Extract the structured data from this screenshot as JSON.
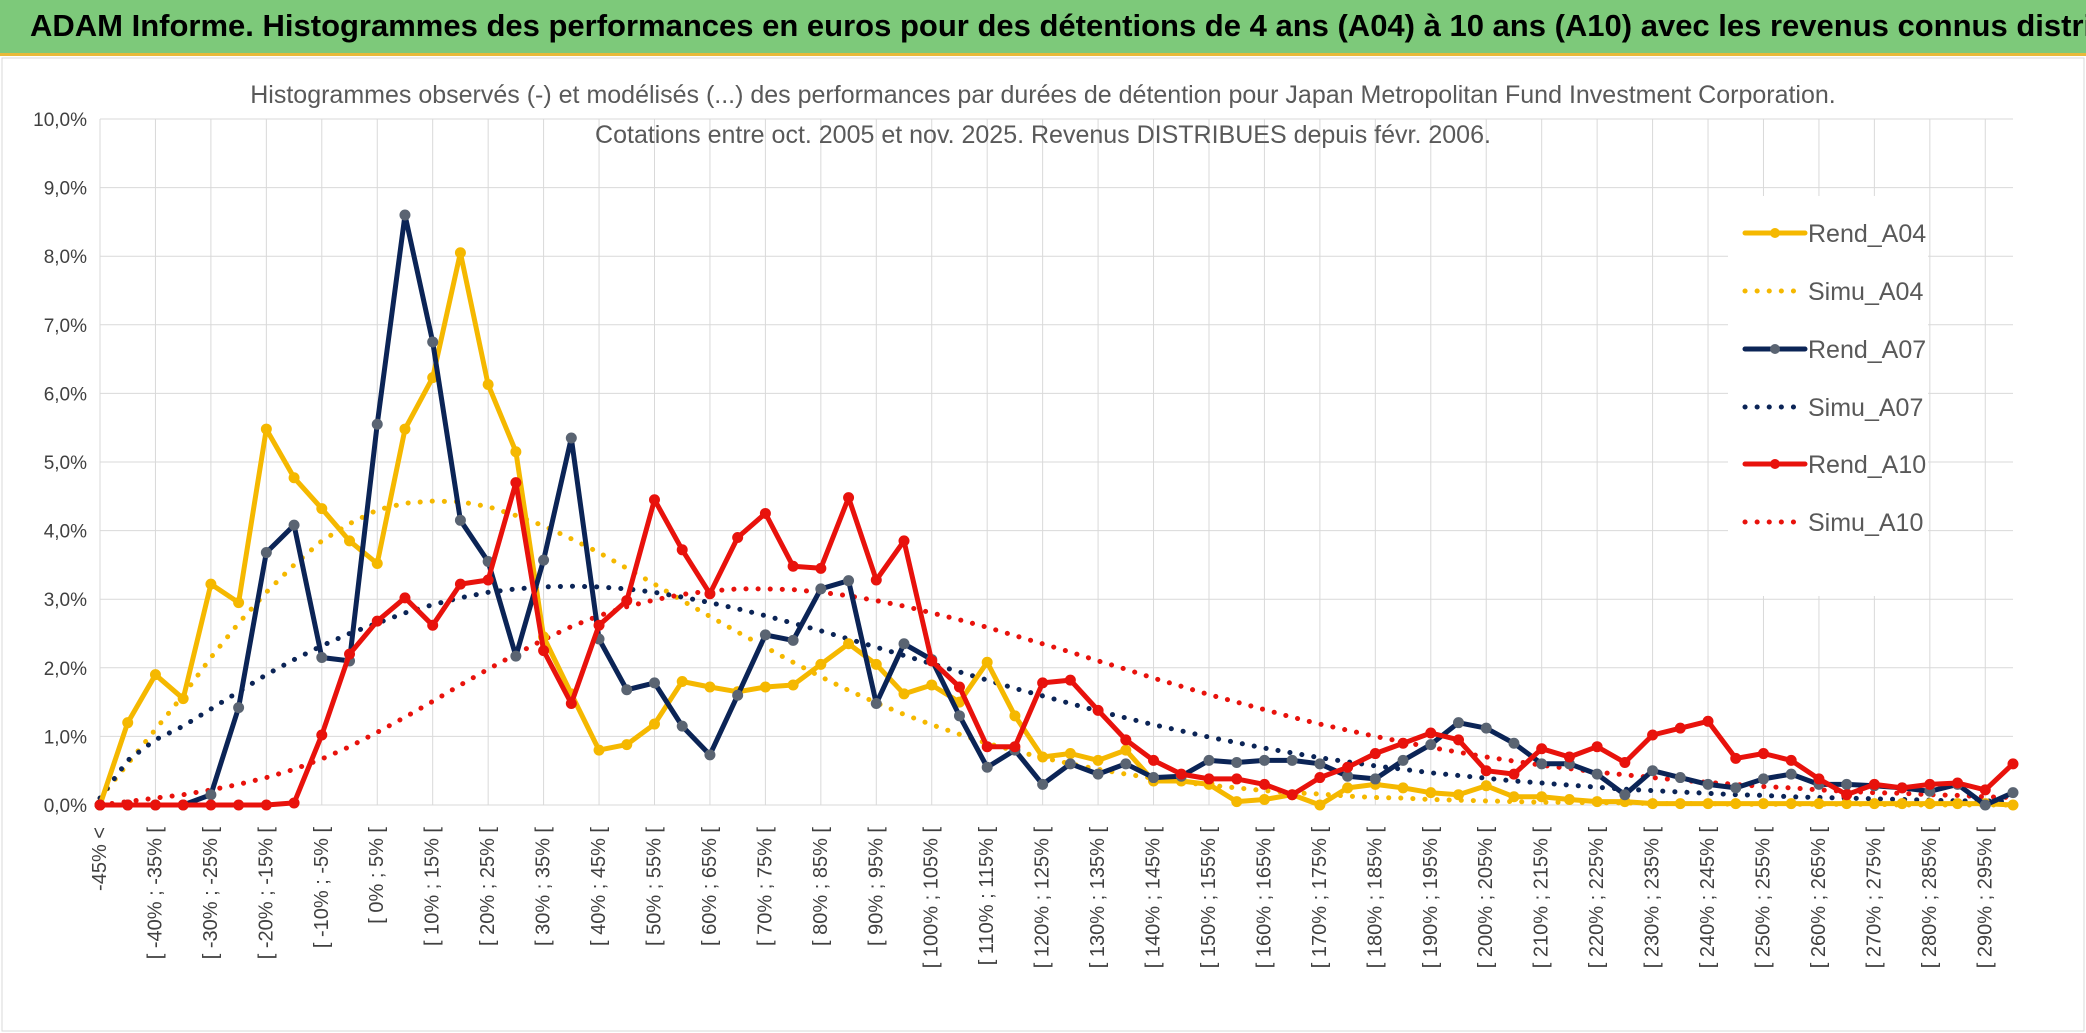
{
  "header": {
    "title": "ADAM Informe. Histogrammes des performances en euros pour des détentions de 4 ans (A04) à 10 ans (A10) avec les revenus connus distribués"
  },
  "chart_data": {
    "type": "line",
    "title": [
      "Histogrammes observés (-) et modélisés (...) des performances par durées de détention pour Japan Metropolitan Fund Investment Corporation.",
      "Cotations entre oct. 2005 et nov. 2025. Revenus DISTRIBUES depuis févr. 2006."
    ],
    "xlabel": "",
    "ylabel": "",
    "ylim": [
      0,
      10
    ],
    "yticks": [
      "0,0%",
      "1,0%",
      "2,0%",
      "3,0%",
      "4,0%",
      "5,0%",
      "6,0%",
      "7,0%",
      "8,0%",
      "9,0%",
      "10,0%"
    ],
    "grid": true,
    "legend_position": "right",
    "categories": [
      "-45% <",
      "[ -45% ; -40% [",
      "[ -40% ; -35% [",
      "[ -35% ; -30% [",
      "[ -30% ; -25% [",
      "[ -25% ; -20% [",
      "[ -20% ; -15% [",
      "[ -15% ; -10% [",
      "[ -10% ; -5% [",
      "[ -5% ; 0% [",
      "[ 0% ; 5% [",
      "[ 5% ; 10% [",
      "[ 10% ; 15% [",
      "[ 15% ; 20% [",
      "[ 20% ; 25% [",
      "[ 25% ; 30% [",
      "[ 30% ; 35% [",
      "[ 35% ; 40% [",
      "[ 40% ; 45% [",
      "[ 45% ; 50% [",
      "[ 50% ; 55% [",
      "[ 55% ; 60% [",
      "[ 60% ; 65% [",
      "[ 65% ; 70% [",
      "[ 70% ; 75% [",
      "[ 75% ; 80% [",
      "[ 80% ; 85% [",
      "[ 85% ; 90% [",
      "[ 90% ; 95% [",
      "[ 95% ; 100% [",
      "[ 100% ; 105% [",
      "[ 105% ; 110% [",
      "[ 110% ; 115% [",
      "[ 115% ; 120% [",
      "[ 120% ; 125% [",
      "[ 125% ; 130% [",
      "[ 130% ; 135% [",
      "[ 135% ; 140% [",
      "[ 140% ; 145% [",
      "[ 145% ; 150% [",
      "[ 150% ; 155% [",
      "[ 155% ; 160% [",
      "[ 160% ; 165% [",
      "[ 165% ; 170% [",
      "[ 170% ; 175% [",
      "[ 175% ; 180% [",
      "[ 180% ; 185% [",
      "[ 185% ; 190% [",
      "[ 190% ; 195% [",
      "[ 195% ; 200% [",
      "[ 200% ; 205% [",
      "[ 205% ; 210% [",
      "[ 210% ; 215% [",
      "[ 215% ; 220% [",
      "[ 220% ; 225% [",
      "[ 225% ; 230% [",
      "[ 230% ; 235% [",
      "[ 235% ; 240% [",
      "[ 240% ; 245% [",
      "[ 245% ; 250% [",
      "[ 250% ; 255% [",
      "[ 255% ; 260% [",
      "[ 260% ; 265% [",
      "[ 265% ; 270% [",
      "[ 270% ; 275% [",
      "[ 275% ; 280% [",
      "[ 280% ; 285% [",
      "[ 285% ; 290% [",
      "[ 290% ; 295% [",
      "[ 295% ; 300% ["
    ],
    "visible_category_indices": [
      0,
      2,
      4,
      6,
      8,
      10,
      12,
      14,
      16,
      18,
      20,
      22,
      24,
      26,
      28,
      30,
      32,
      34,
      36,
      38,
      40,
      42,
      44,
      46,
      48,
      50,
      52,
      54,
      56,
      58,
      60,
      62,
      64,
      66,
      68
    ],
    "series": [
      {
        "name": "Rend_A04",
        "style": "solid",
        "color": "#f5b800",
        "values": [
          0,
          1.2,
          1.9,
          1.55,
          3.22,
          2.95,
          5.48,
          4.77,
          4.32,
          3.85,
          3.52,
          5.48,
          6.23,
          8.05,
          6.13,
          5.15,
          2.45,
          1.62,
          0.8,
          0.88,
          1.18,
          1.8,
          1.72,
          1.65,
          1.72,
          1.75,
          2.05,
          2.35,
          2.05,
          1.62,
          1.75,
          1.5,
          2.08,
          1.3,
          0.7,
          0.75,
          0.65,
          0.8,
          0.35,
          0.35,
          0.3,
          0.05,
          0.08,
          0.15,
          0.0,
          0.25,
          0.3,
          0.25,
          0.18,
          0.15,
          0.28,
          0.12,
          0.12,
          0.08,
          0.05,
          0.05,
          0.02,
          0.02,
          0.02,
          0.02,
          0.02,
          0.02,
          0.02,
          0.02,
          0.02,
          0.02,
          0.02,
          0.02,
          0.02,
          0.0
        ]
      },
      {
        "name": "Simu_A04",
        "style": "dotted",
        "color": "#f5b800",
        "values": [
          0.1,
          0.6,
          1.1,
          1.6,
          2.15,
          2.65,
          3.1,
          3.5,
          3.85,
          4.1,
          4.3,
          4.4,
          4.43,
          4.42,
          4.35,
          4.22,
          4.07,
          3.88,
          3.68,
          3.45,
          3.22,
          2.98,
          2.75,
          2.52,
          2.3,
          2.08,
          1.87,
          1.67,
          1.49,
          1.32,
          1.17,
          1.03,
          0.9,
          0.79,
          0.69,
          0.6,
          0.52,
          0.45,
          0.39,
          0.33,
          0.29,
          0.25,
          0.21,
          0.18,
          0.16,
          0.13,
          0.11,
          0.1,
          0.08,
          0.07,
          0.06,
          0.05,
          0.04,
          0.04,
          0.03,
          0.03,
          0.02,
          0.02,
          0.02,
          0.01,
          0.01,
          0.01,
          0.01,
          0.01,
          0.01,
          0.0,
          0.0,
          0.0,
          0.0,
          0.0
        ]
      },
      {
        "name": "Rend_A07",
        "style": "solid",
        "color": "#0b2456",
        "values": [
          0,
          0,
          0,
          0,
          0.15,
          1.42,
          3.68,
          4.08,
          2.15,
          2.1,
          5.55,
          8.6,
          6.75,
          4.15,
          3.55,
          2.17,
          3.57,
          5.35,
          2.42,
          1.68,
          1.78,
          1.15,
          0.73,
          1.6,
          2.48,
          2.4,
          3.15,
          3.27,
          1.48,
          2.35,
          2.12,
          1.3,
          0.55,
          0.8,
          0.3,
          0.6,
          0.45,
          0.6,
          0.4,
          0.42,
          0.65,
          0.62,
          0.65,
          0.65,
          0.6,
          0.42,
          0.38,
          0.65,
          0.88,
          1.2,
          1.12,
          0.9,
          0.6,
          0.6,
          0.45,
          0.15,
          0.5,
          0.4,
          0.3,
          0.25,
          0.38,
          0.45,
          0.3,
          0.3,
          0.28,
          0.25,
          0.2,
          0.3,
          0.0,
          0.18
        ]
      },
      {
        "name": "Simu_A07",
        "style": "dotted",
        "color": "#0b2456",
        "values": [
          0.1,
          0.65,
          0.95,
          1.15,
          1.4,
          1.65,
          1.9,
          2.12,
          2.32,
          2.5,
          2.65,
          2.8,
          2.92,
          3.02,
          3.1,
          3.15,
          3.18,
          3.19,
          3.18,
          3.15,
          3.1,
          3.03,
          2.95,
          2.86,
          2.76,
          2.65,
          2.54,
          2.42,
          2.3,
          2.18,
          2.06,
          1.94,
          1.82,
          1.7,
          1.59,
          1.48,
          1.37,
          1.27,
          1.17,
          1.08,
          0.99,
          0.91,
          0.83,
          0.76,
          0.69,
          0.63,
          0.57,
          0.52,
          0.47,
          0.43,
          0.39,
          0.35,
          0.32,
          0.29,
          0.26,
          0.23,
          0.21,
          0.19,
          0.17,
          0.15,
          0.14,
          0.12,
          0.11,
          0.1,
          0.09,
          0.08,
          0.07,
          0.06,
          0.06,
          0.05
        ]
      },
      {
        "name": "Rend_A10",
        "style": "solid",
        "color": "#e8120c",
        "values": [
          0,
          0,
          0,
          0,
          0,
          0,
          0,
          0.03,
          1.02,
          2.2,
          2.68,
          3.02,
          2.62,
          3.22,
          3.28,
          4.7,
          2.25,
          1.48,
          2.62,
          2.98,
          4.45,
          3.72,
          3.08,
          3.9,
          4.25,
          3.48,
          3.45,
          4.48,
          3.28,
          3.85,
          2.1,
          1.72,
          0.85,
          0.85,
          1.78,
          1.82,
          1.38,
          0.95,
          0.65,
          0.45,
          0.38,
          0.38,
          0.3,
          0.15,
          0.4,
          0.55,
          0.75,
          0.9,
          1.05,
          0.95,
          0.5,
          0.45,
          0.82,
          0.7,
          0.85,
          0.62,
          1.02,
          1.12,
          1.22,
          0.68,
          0.75,
          0.65,
          0.38,
          0.15,
          0.3,
          0.25,
          0.3,
          0.32,
          0.22,
          0.6
        ]
      },
      {
        "name": "Simu_A10",
        "style": "dotted",
        "color": "#e8120c",
        "values": [
          0,
          0.05,
          0.1,
          0.15,
          0.22,
          0.3,
          0.4,
          0.52,
          0.67,
          0.85,
          1.06,
          1.28,
          1.51,
          1.75,
          1.98,
          2.2,
          2.41,
          2.6,
          2.76,
          2.89,
          2.99,
          3.07,
          3.12,
          3.15,
          3.15,
          3.14,
          3.1,
          3.05,
          2.98,
          2.9,
          2.8,
          2.7,
          2.59,
          2.47,
          2.35,
          2.23,
          2.1,
          1.98,
          1.85,
          1.73,
          1.61,
          1.5,
          1.39,
          1.28,
          1.18,
          1.09,
          1.0,
          0.92,
          0.84,
          0.77,
          0.7,
          0.64,
          0.58,
          0.53,
          0.48,
          0.44,
          0.4,
          0.36,
          0.33,
          0.3,
          0.27,
          0.25,
          0.22,
          0.2,
          0.18,
          0.17,
          0.15,
          0.14,
          0.12,
          0.11
        ]
      }
    ]
  }
}
